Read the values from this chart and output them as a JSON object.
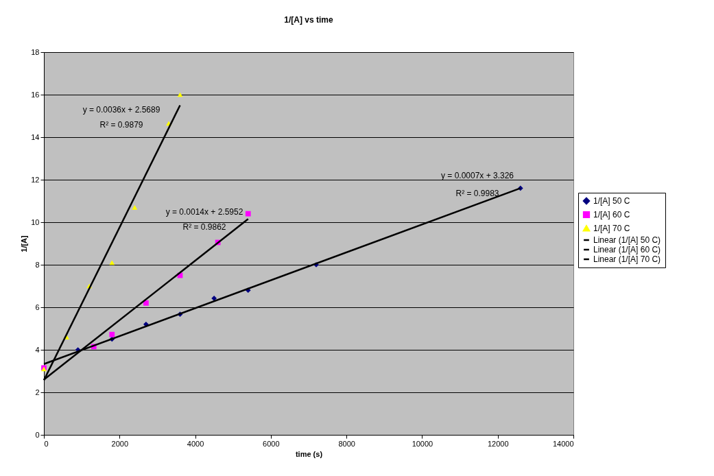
{
  "chart_data": {
    "type": "scatter",
    "title": "1/[A] vs time",
    "xlabel": "time (s)",
    "ylabel": "1/[A]",
    "xlim": [
      0,
      14000
    ],
    "xticks": [
      0,
      2000,
      4000,
      6000,
      8000,
      10000,
      12000,
      14000
    ],
    "ylim": [
      0,
      18
    ],
    "yticks": [
      0,
      2,
      4,
      6,
      8,
      10,
      12,
      14,
      16,
      18
    ],
    "grid": "y",
    "legend": "right",
    "series": [
      {
        "name": "1/[A] 50 C",
        "color": "#000080",
        "marker": "diamond",
        "x": [
          900,
          1800,
          2700,
          3600,
          4500,
          5400,
          7200,
          12600
        ],
        "values": [
          4.0,
          4.5,
          5.2,
          5.67,
          6.42,
          6.8,
          8.0,
          11.6
        ]
      },
      {
        "name": "1/[A] 60 C",
        "color": "#ff00ff",
        "marker": "square",
        "x": [
          0,
          1320,
          1800,
          2700,
          3600,
          4600,
          5400
        ],
        "values": [
          3.15,
          4.15,
          4.72,
          6.2,
          7.5,
          9.05,
          10.4
        ]
      },
      {
        "name": "1/[A] 70 C",
        "color": "#ffff00",
        "marker": "triangle",
        "x": [
          0,
          600,
          1200,
          1800,
          2400,
          3300,
          3600
        ],
        "values": [
          3.1,
          4.6,
          7.0,
          8.1,
          10.7,
          14.65,
          16.0
        ]
      },
      {
        "name": "Linear (1/[A] 50 C)",
        "type": "line",
        "color": "#000000",
        "line_style": "solid",
        "x": [
          0,
          12600
        ],
        "values": [
          3.33,
          11.6
        ]
      },
      {
        "name": "Linear (1/[A] 60 C)",
        "type": "line",
        "color": "#000000",
        "line_style": "solid",
        "x": [
          0,
          5400
        ],
        "values": [
          2.6,
          10.15
        ]
      },
      {
        "name": "Linear (1/[A] 70 C)",
        "type": "line",
        "color": "#000000",
        "line_style": "solid",
        "x": [
          0,
          3600
        ],
        "values": [
          2.57,
          15.5
        ]
      }
    ],
    "annotations": [
      "y = 0.0036x + 2.5689",
      "R² = 0.9879",
      "y = 0.0014x + 2.5952",
      "R² = 0.9862",
      "y = 0.0007x + 3.326",
      "R² = 0.9983"
    ]
  }
}
